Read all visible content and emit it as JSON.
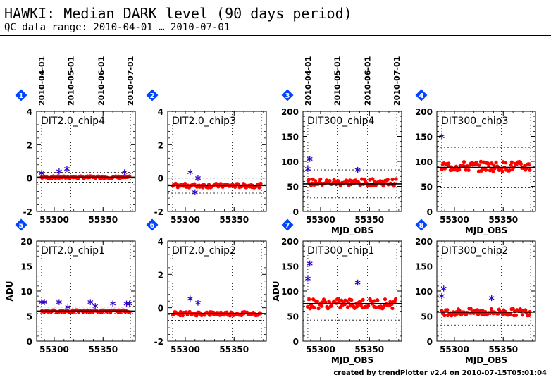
{
  "header": {
    "title": "HAWKI: Median DARK level (90 days period)",
    "subtitle": "QC data range: 2010-04-01 … 2010-07-01"
  },
  "footer": {
    "text": "created by trendPlotter v2.4 on 2010-07-15T05:01:04"
  },
  "colors": {
    "points": "#ff0000",
    "outliers": "#3300cc",
    "badge": "#0044ff",
    "median_line": "#000000",
    "threshold_line": "#000000"
  },
  "date_labels": [
    "2010-04-01",
    "2010-05-01",
    "2010-06-01",
    "2010-07-01"
  ],
  "chart_data": [
    {
      "type": "scatter",
      "index": "1",
      "panel_label": "DIT2.0_chip4",
      "xlim": [
        55282,
        55383
      ],
      "ylim": [
        -2,
        4
      ],
      "xticks": [
        55300,
        55350
      ],
      "yticks": [
        -2,
        0,
        2,
        4
      ],
      "ylabel": "",
      "xlabel": "",
      "median": 0.05,
      "thresholds": [
        -0.25,
        0.35
      ],
      "points": {
        "start": 55287,
        "end": 55377,
        "count": 85,
        "base": 0.05,
        "spread": 0.07
      },
      "outliers": [
        [
          55287,
          0.3
        ],
        [
          55305,
          0.4
        ],
        [
          55313,
          0.55
        ],
        [
          55372,
          0.35
        ]
      ]
    },
    {
      "type": "scatter",
      "index": "2",
      "panel_label": "DIT2.0_chip3",
      "xlim": [
        55282,
        55383
      ],
      "ylim": [
        -2,
        4
      ],
      "xticks": [
        55300,
        55350
      ],
      "yticks": [
        -2,
        0,
        2,
        4
      ],
      "ylabel": "",
      "xlabel": "",
      "median": -0.45,
      "thresholds": [
        -0.9,
        0.0
      ],
      "points": {
        "start": 55287,
        "end": 55377,
        "count": 85,
        "base": -0.45,
        "spread": 0.12
      },
      "outliers": [
        [
          55305,
          0.35
        ],
        [
          55310,
          -0.85
        ],
        [
          55313,
          0.0
        ]
      ]
    },
    {
      "type": "scatter",
      "index": "3",
      "panel_label": "DIT300_chip4",
      "xlim": [
        55282,
        55383
      ],
      "ylim": [
        0,
        200
      ],
      "xticks": [
        55300,
        55350
      ],
      "yticks": [
        0,
        50,
        100,
        150,
        200
      ],
      "ylabel": "",
      "xlabel": "MJD_OBS",
      "median": 55,
      "thresholds": [
        27,
        83
      ],
      "points": {
        "start": 55287,
        "end": 55377,
        "count": 85,
        "base": 58,
        "spread": 7
      },
      "outliers": [
        [
          55287,
          85
        ],
        [
          55289,
          105
        ],
        [
          55338,
          83
        ]
      ]
    },
    {
      "type": "scatter",
      "index": "4",
      "panel_label": "DIT300_chip3",
      "xlim": [
        55282,
        55383
      ],
      "ylim": [
        0,
        200
      ],
      "xticks": [
        55300,
        55350
      ],
      "yticks": [
        0,
        50,
        100,
        150,
        200
      ],
      "ylabel": "",
      "xlabel": "MJD_OBS",
      "median": 88,
      "thresholds": [
        47,
        128
      ],
      "points": {
        "start": 55287,
        "end": 55377,
        "count": 85,
        "base": 90,
        "spread": 10
      },
      "outliers": [
        [
          55287,
          150
        ]
      ]
    },
    {
      "type": "scatter",
      "index": "5",
      "panel_label": "DIT2.0_chip1",
      "xlim": [
        55282,
        55383
      ],
      "ylim": [
        0,
        20
      ],
      "xticks": [
        55300,
        55350
      ],
      "yticks": [
        0,
        5,
        10,
        15,
        20
      ],
      "ylabel": "ADU",
      "xlabel": "",
      "median": 6.0,
      "thresholds": [
        5.5,
        6.8
      ],
      "points": {
        "start": 55287,
        "end": 55377,
        "count": 85,
        "base": 6.0,
        "spread": 0.2
      },
      "outliers": [
        [
          55287,
          7.8
        ],
        [
          55290,
          7.8
        ],
        [
          55305,
          7.8
        ],
        [
          55314,
          6.8
        ],
        [
          55337,
          7.8
        ],
        [
          55342,
          7.0
        ],
        [
          55360,
          7.5
        ],
        [
          55374,
          7.5
        ],
        [
          55377,
          7.5
        ]
      ]
    },
    {
      "type": "scatter",
      "index": "6",
      "panel_label": "DIT2.0_chip2",
      "xlim": [
        55282,
        55383
      ],
      "ylim": [
        -2,
        4
      ],
      "xticks": [
        55300,
        55350
      ],
      "yticks": [
        -2,
        0,
        2,
        4
      ],
      "ylabel": "",
      "xlabel": "",
      "median": -0.35,
      "thresholds": [
        -0.75,
        0.05
      ],
      "points": {
        "start": 55287,
        "end": 55377,
        "count": 85,
        "base": -0.35,
        "spread": 0.12
      },
      "outliers": [
        [
          55305,
          0.55
        ],
        [
          55313,
          0.3
        ]
      ]
    },
    {
      "type": "scatter",
      "index": "7",
      "panel_label": "DIT300_chip1",
      "xlim": [
        55282,
        55383
      ],
      "ylim": [
        0,
        200
      ],
      "xticks": [
        55300,
        55350
      ],
      "yticks": [
        0,
        50,
        100,
        150,
        200
      ],
      "ylabel": "ADU",
      "xlabel": "MJD_OBS",
      "median": 75,
      "thresholds": [
        42,
        112
      ],
      "points": {
        "start": 55287,
        "end": 55377,
        "count": 85,
        "base": 75,
        "spread": 10
      },
      "outliers": [
        [
          55287,
          125
        ],
        [
          55289,
          155
        ],
        [
          55338,
          117
        ]
      ]
    },
    {
      "type": "scatter",
      "index": "8",
      "panel_label": "DIT300_chip2",
      "xlim": [
        55282,
        55383
      ],
      "ylim": [
        0,
        200
      ],
      "xticks": [
        55300,
        55350
      ],
      "yticks": [
        0,
        50,
        100,
        150,
        200
      ],
      "ylabel": "",
      "xlabel": "MJD_OBS",
      "median": 58,
      "thresholds": [
        32,
        88
      ],
      "points": {
        "start": 55287,
        "end": 55377,
        "count": 85,
        "base": 58,
        "spread": 7
      },
      "outliers": [
        [
          55287,
          90
        ],
        [
          55289,
          105
        ],
        [
          55338,
          86
        ]
      ]
    }
  ]
}
